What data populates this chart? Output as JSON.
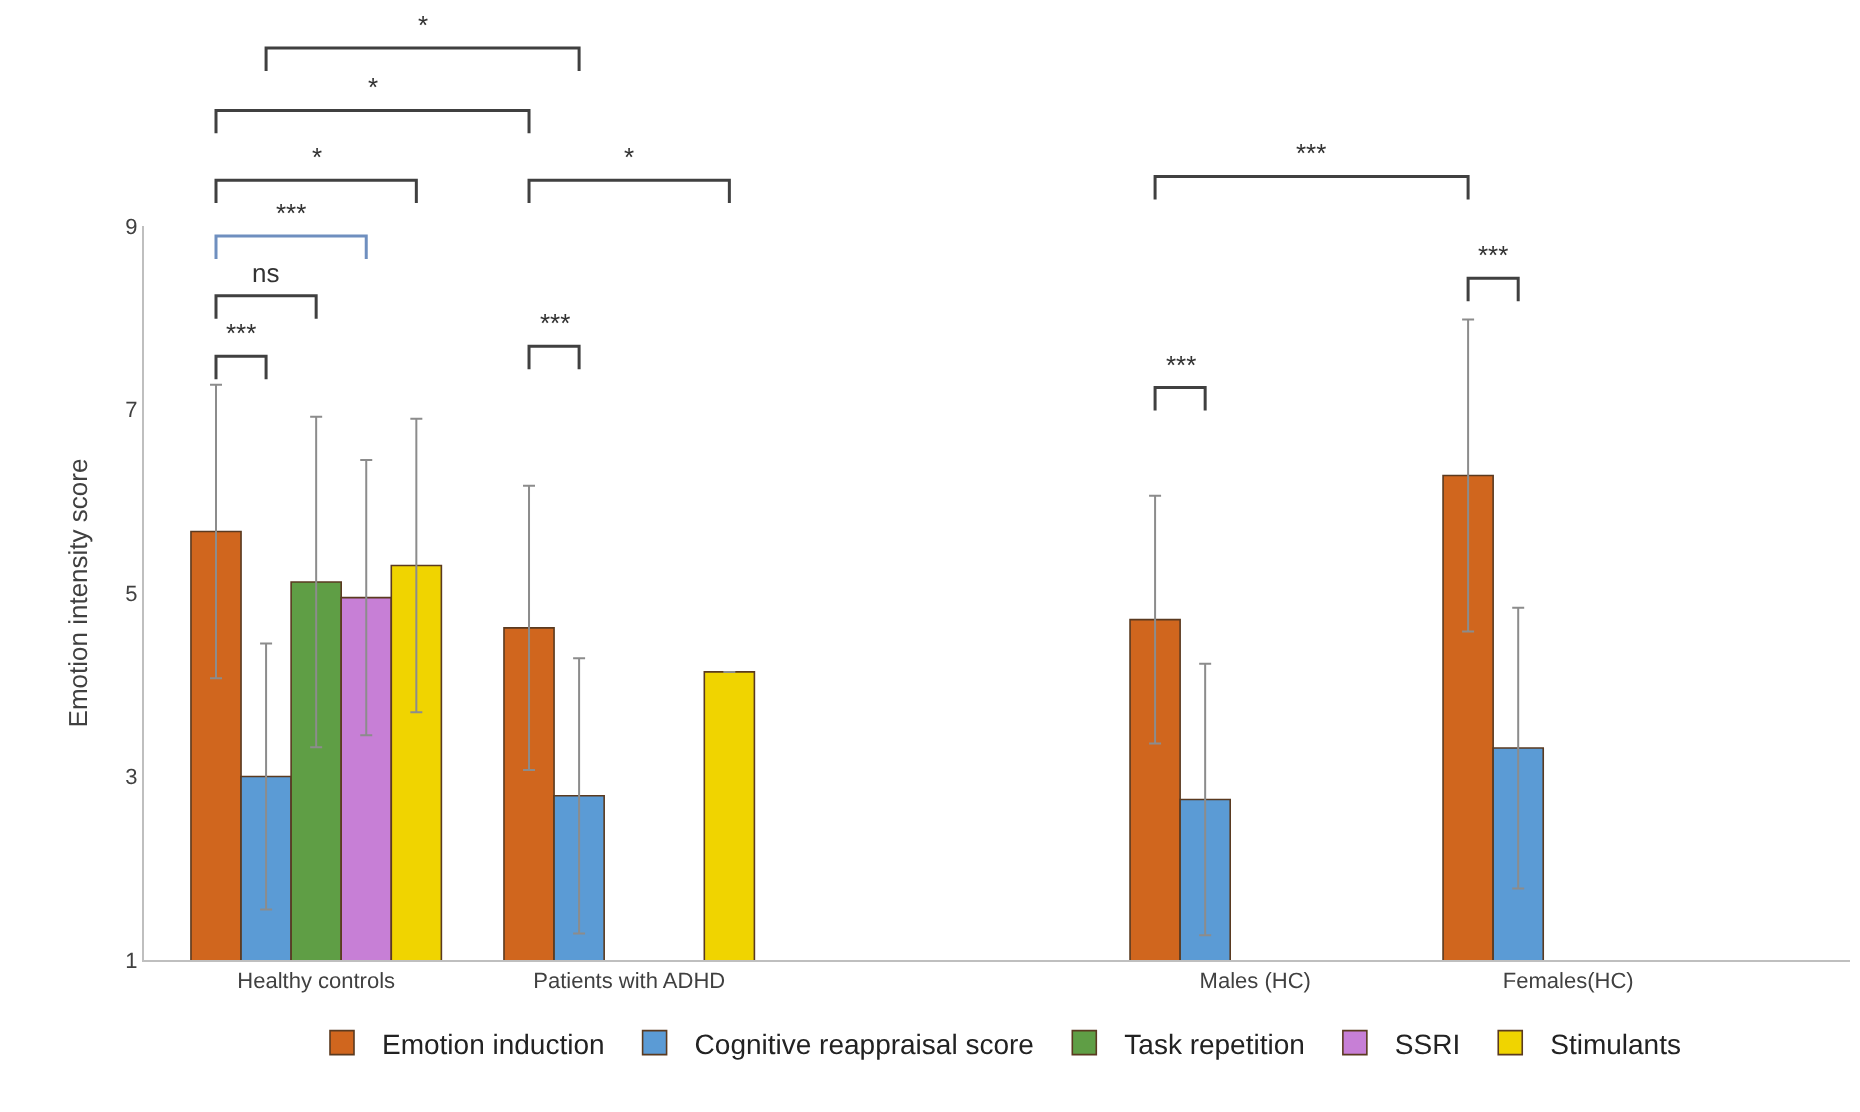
{
  "chart_data": {
    "type": "bar",
    "ylabel": "Emotion intensity score",
    "categories": [
      "Healthy controls",
      "Patients with ADHD",
      null,
      "Males (HC)",
      "Females(HC)"
    ],
    "series": [
      {
        "name": "Emotion induction",
        "color": "#d0661e",
        "values": [
          5.67,
          4.62,
          null,
          4.71,
          6.28
        ],
        "errors": [
          1.6,
          1.55,
          null,
          1.35,
          1.7
        ]
      },
      {
        "name": "Cognitive reappraisal score",
        "color": "#5b9bd5",
        "values": [
          3.0,
          2.79,
          null,
          2.75,
          3.31
        ],
        "errors": [
          1.45,
          1.5,
          null,
          1.48,
          1.53
        ]
      },
      {
        "name": "Task repetition",
        "color": "#5f9e45",
        "values": [
          5.12,
          null,
          null,
          null,
          null
        ],
        "errors": [
          1.8,
          null,
          null,
          null,
          null
        ]
      },
      {
        "name": "SSRI",
        "color": "#c77fd6",
        "values": [
          4.95,
          null,
          null,
          null,
          null
        ],
        "errors": [
          1.5,
          null,
          null,
          null,
          null
        ]
      },
      {
        "name": "Stimulants",
        "color": "#f0d400",
        "values": [
          5.3,
          4.14,
          null,
          null,
          null
        ],
        "errors": [
          1.6,
          null,
          null,
          null,
          null
        ]
      }
    ],
    "ylim": [
      1,
      9
    ],
    "yticks": [
      1,
      3,
      5,
      7,
      9
    ],
    "legend": "bottom",
    "annotations": [
      "*",
      "*",
      "*",
      "*",
      "***",
      "***",
      "ns",
      "***",
      "***",
      "***",
      "***"
    ]
  }
}
